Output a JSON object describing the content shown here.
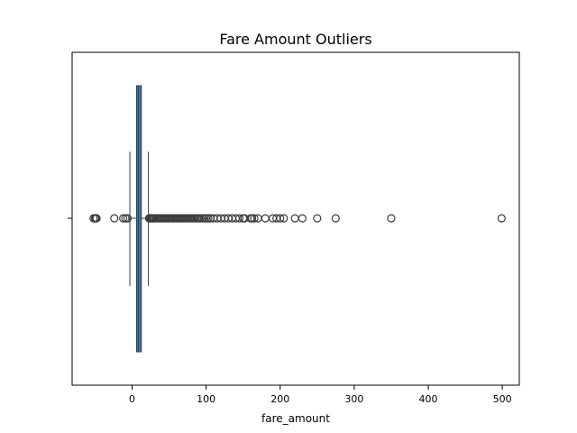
{
  "chart_data": {
    "type": "box",
    "title": "Fare Amount Outliers",
    "xlabel": "fare_amount",
    "ylabel": "",
    "xlim": [
      -80,
      520
    ],
    "xticks": [
      0,
      100,
      200,
      300,
      400,
      500
    ],
    "xtick_labels": [
      "0",
      "100",
      "200",
      "300",
      "400",
      "500"
    ],
    "orientation": "horizontal",
    "box": {
      "whisker_low": -3,
      "q1": 6,
      "median": 8.5,
      "q3": 12.5,
      "whisker_high": 22
    },
    "outliers": [
      -52,
      -50,
      -49,
      -48,
      -24,
      -12,
      -9,
      -6,
      23,
      24,
      25,
      26,
      27,
      28,
      29,
      30,
      32,
      34,
      36,
      38,
      40,
      42,
      44,
      46,
      48,
      50,
      52,
      54,
      56,
      58,
      60,
      62,
      64,
      66,
      68,
      70,
      72,
      74,
      76,
      78,
      80,
      82,
      84,
      86,
      88,
      90,
      92,
      95,
      98,
      100,
      103,
      106,
      110,
      115,
      120,
      125,
      130,
      135,
      140,
      145,
      150,
      152,
      160,
      162,
      165,
      170,
      180,
      190,
      195,
      200,
      205,
      220,
      230,
      250,
      275,
      350,
      499
    ],
    "grid": false,
    "colors": {
      "box_fill": "#3b75af",
      "box_edge": "#3d3d3d",
      "marker_edge": "#3d3d3d"
    }
  }
}
